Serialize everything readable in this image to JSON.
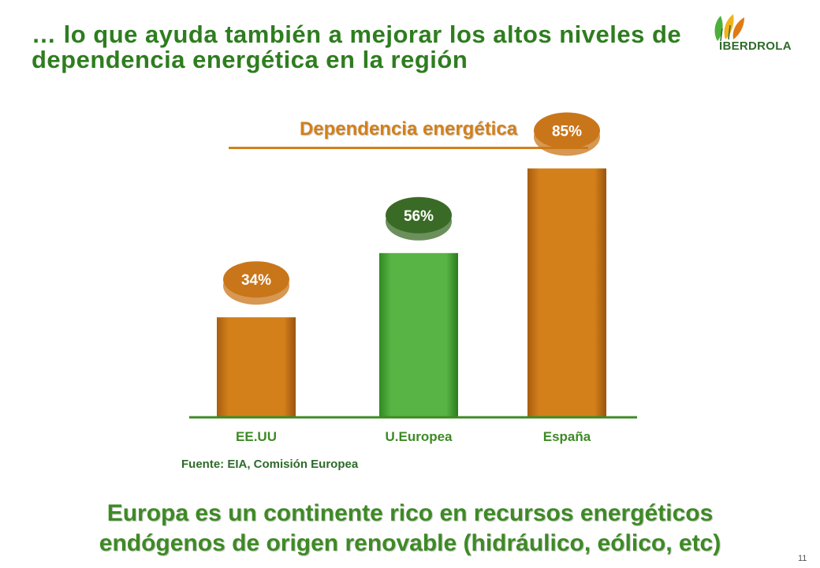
{
  "slide": {
    "title": "… lo que ayuda también a mejorar los altos niveles de dependencia energética en la región",
    "logo_text": "IBERDROLA",
    "source": "Fuente: EIA, Comisión Europea",
    "conclusion_line1": "Europa es un continente rico en recursos energéticos",
    "conclusion_line2": "endógenos de origen renovable (hidráulico, eólico, etc)",
    "page_number": "11"
  },
  "colors": {
    "title_green": "#2e7d1f",
    "orange": "#d3801a",
    "green_bar": "#4caf3a",
    "dark_green_label": "#3a6b26",
    "axis": "#3e8a25"
  },
  "chart_data": {
    "type": "bar",
    "title": "Dependencia energética",
    "categories": [
      "EE.UU",
      "U.Europea",
      "España"
    ],
    "values": [
      34,
      56,
      85
    ],
    "data_labels": [
      "34%",
      "56%",
      "85%"
    ],
    "bar_colors": [
      "#d3801a",
      "#4caf3a",
      "#d3801a"
    ],
    "label_colors": [
      "#c9761a",
      "#3a6b26",
      "#c9761a"
    ],
    "ylim": [
      0,
      100
    ],
    "grid": false,
    "legend": "none"
  }
}
